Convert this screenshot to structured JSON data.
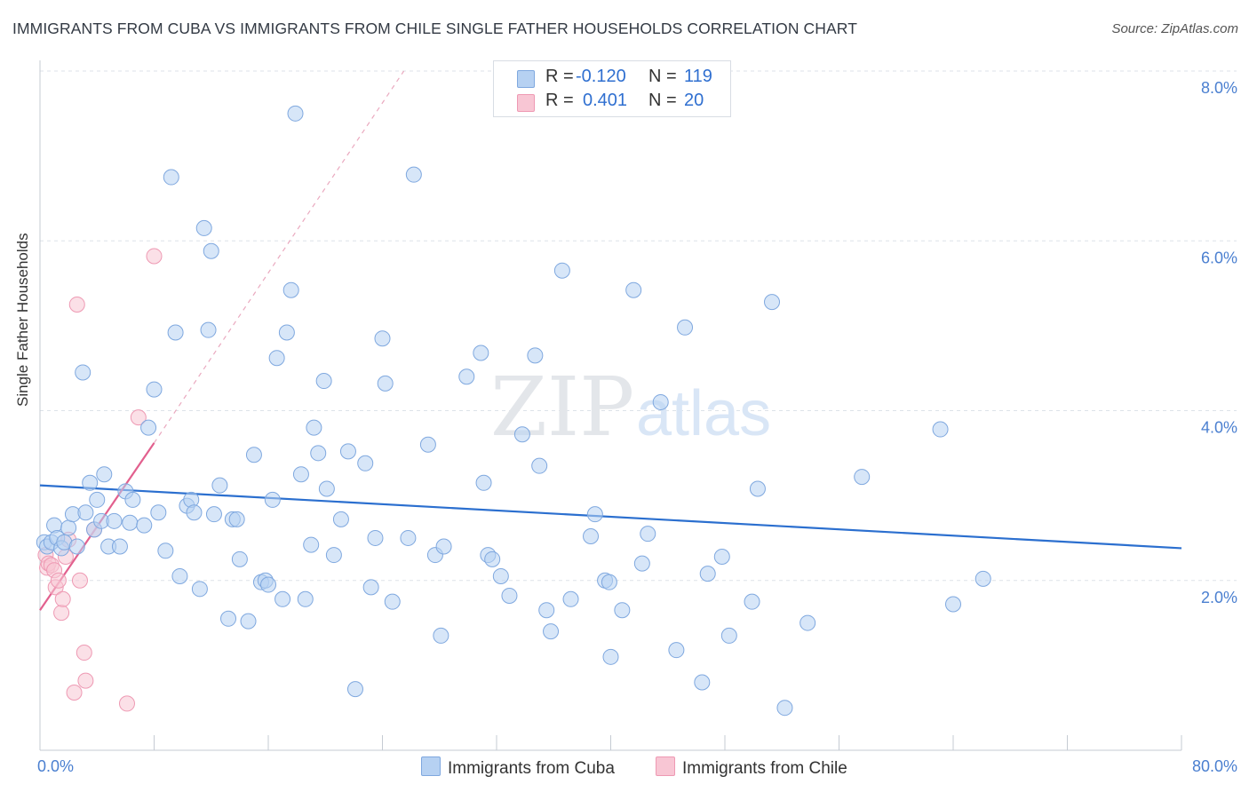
{
  "title": "IMMIGRANTS FROM CUBA VS IMMIGRANTS FROM CHILE SINGLE FATHER HOUSEHOLDS CORRELATION CHART",
  "source": "Source: ZipAtlas.com",
  "watermark": {
    "zip": "ZIP",
    "atlas": "atlas"
  },
  "legend": {
    "r_label": "R =",
    "n_label": "N =",
    "cuba": {
      "r": "-0.120",
      "n": "119"
    },
    "chile": {
      "r": "0.401",
      "n": "20"
    }
  },
  "colors": {
    "cuba_fill": "#b6d1f2",
    "cuba_stroke": "#7fa8df",
    "cuba_line": "#2b6fcf",
    "chile_fill": "#f8c6d4",
    "chile_stroke": "#ee99b3",
    "chile_line": "#e2608e",
    "axis_label": "#4a7fd0",
    "grid": "#dde2e8"
  },
  "chart_data": {
    "type": "scatter",
    "title": "IMMIGRANTS FROM CUBA VS IMMIGRANTS FROM CHILE SINGLE FATHER HOUSEHOLDS CORRELATION CHART",
    "xlabel": "",
    "ylabel": "Single Father Households",
    "xlim": [
      0,
      80
    ],
    "ylim": [
      0,
      8
    ],
    "x_tick_labels": [
      "0.0%",
      "80.0%"
    ],
    "y_ticks": [
      {
        "value": 2,
        "label": "2.0%"
      },
      {
        "value": 4,
        "label": "4.0%"
      },
      {
        "value": 6,
        "label": "6.0%"
      },
      {
        "value": 8,
        "label": "8.0%"
      }
    ],
    "series": [
      {
        "name": "Immigrants from Cuba",
        "trend": {
          "x": [
            0,
            80
          ],
          "y": [
            3.12,
            2.38
          ]
        },
        "points": [
          [
            0.3,
            2.45
          ],
          [
            0.5,
            2.4
          ],
          [
            0.8,
            2.45
          ],
          [
            1.0,
            2.65
          ],
          [
            1.2,
            2.5
          ],
          [
            1.5,
            2.38
          ],
          [
            1.7,
            2.45
          ],
          [
            2.0,
            2.62
          ],
          [
            2.3,
            2.78
          ],
          [
            2.6,
            2.4
          ],
          [
            3.0,
            4.45
          ],
          [
            3.2,
            2.8
          ],
          [
            3.5,
            3.15
          ],
          [
            3.8,
            2.6
          ],
          [
            4.0,
            2.95
          ],
          [
            4.3,
            2.7
          ],
          [
            4.5,
            3.25
          ],
          [
            4.8,
            2.4
          ],
          [
            5.2,
            2.7
          ],
          [
            5.6,
            2.4
          ],
          [
            6.0,
            3.05
          ],
          [
            6.3,
            2.68
          ],
          [
            6.5,
            2.95
          ],
          [
            7.3,
            2.65
          ],
          [
            7.6,
            3.8
          ],
          [
            8.0,
            4.25
          ],
          [
            8.3,
            2.8
          ],
          [
            8.8,
            2.35
          ],
          [
            9.2,
            6.75
          ],
          [
            9.5,
            4.92
          ],
          [
            9.8,
            2.05
          ],
          [
            10.3,
            2.88
          ],
          [
            10.6,
            2.95
          ],
          [
            10.8,
            2.8
          ],
          [
            11.2,
            1.9
          ],
          [
            11.5,
            6.15
          ],
          [
            11.8,
            4.95
          ],
          [
            12.0,
            5.88
          ],
          [
            12.2,
            2.78
          ],
          [
            12.6,
            3.12
          ],
          [
            13.2,
            1.55
          ],
          [
            13.5,
            2.72
          ],
          [
            13.8,
            2.72
          ],
          [
            14.0,
            2.25
          ],
          [
            14.6,
            1.52
          ],
          [
            15.0,
            3.48
          ],
          [
            15.5,
            1.98
          ],
          [
            15.8,
            2.0
          ],
          [
            16.0,
            1.95
          ],
          [
            16.3,
            2.95
          ],
          [
            16.6,
            4.62
          ],
          [
            17.0,
            1.78
          ],
          [
            17.3,
            4.92
          ],
          [
            17.6,
            5.42
          ],
          [
            17.9,
            7.5
          ],
          [
            18.3,
            3.25
          ],
          [
            18.6,
            1.78
          ],
          [
            19.0,
            2.42
          ],
          [
            19.2,
            3.8
          ],
          [
            19.5,
            3.5
          ],
          [
            19.9,
            4.35
          ],
          [
            20.1,
            3.08
          ],
          [
            20.6,
            2.3
          ],
          [
            21.1,
            2.72
          ],
          [
            21.6,
            3.52
          ],
          [
            22.1,
            0.72
          ],
          [
            22.8,
            3.38
          ],
          [
            23.2,
            1.92
          ],
          [
            23.5,
            2.5
          ],
          [
            24.0,
            4.85
          ],
          [
            24.2,
            4.32
          ],
          [
            24.7,
            1.75
          ],
          [
            25.8,
            2.5
          ],
          [
            26.2,
            6.78
          ],
          [
            27.2,
            3.6
          ],
          [
            27.7,
            2.3
          ],
          [
            28.1,
            1.35
          ],
          [
            28.3,
            2.4
          ],
          [
            29.9,
            4.4
          ],
          [
            30.9,
            4.68
          ],
          [
            31.1,
            3.15
          ],
          [
            31.4,
            2.3
          ],
          [
            31.7,
            2.25
          ],
          [
            32.3,
            2.05
          ],
          [
            32.9,
            1.82
          ],
          [
            33.8,
            3.72
          ],
          [
            34.7,
            4.65
          ],
          [
            35.0,
            3.35
          ],
          [
            35.5,
            1.65
          ],
          [
            35.8,
            1.4
          ],
          [
            36.6,
            5.65
          ],
          [
            37.2,
            1.78
          ],
          [
            38.6,
            2.52
          ],
          [
            38.9,
            2.78
          ],
          [
            39.6,
            2.0
          ],
          [
            39.9,
            1.98
          ],
          [
            40.0,
            1.1
          ],
          [
            40.8,
            1.65
          ],
          [
            41.6,
            5.42
          ],
          [
            42.2,
            2.2
          ],
          [
            42.6,
            2.55
          ],
          [
            43.5,
            4.1
          ],
          [
            44.6,
            1.18
          ],
          [
            45.2,
            4.98
          ],
          [
            46.4,
            0.8
          ],
          [
            46.8,
            2.08
          ],
          [
            47.8,
            2.28
          ],
          [
            48.3,
            1.35
          ],
          [
            49.9,
            1.75
          ],
          [
            50.3,
            3.08
          ],
          [
            51.3,
            5.28
          ],
          [
            52.2,
            0.5
          ],
          [
            53.8,
            1.5
          ],
          [
            57.6,
            3.22
          ],
          [
            63.1,
            3.78
          ],
          [
            64.0,
            1.72
          ],
          [
            66.1,
            2.02
          ]
        ]
      },
      {
        "name": "Immigrants from Chile",
        "trend": {
          "x": [
            0,
            8.0
          ],
          "y": [
            1.65,
            3.62
          ]
        },
        "trend_dashed": {
          "x": [
            8.0,
            25.5
          ],
          "y": [
            3.62,
            8.0
          ]
        },
        "points": [
          [
            0.4,
            2.3
          ],
          [
            0.5,
            2.15
          ],
          [
            0.6,
            2.2
          ],
          [
            0.8,
            2.18
          ],
          [
            1.0,
            2.12
          ],
          [
            1.1,
            1.92
          ],
          [
            1.3,
            2.0
          ],
          [
            1.5,
            1.62
          ],
          [
            1.6,
            1.78
          ],
          [
            1.8,
            2.28
          ],
          [
            2.0,
            2.48
          ],
          [
            2.4,
            0.68
          ],
          [
            2.6,
            5.25
          ],
          [
            2.8,
            2.0
          ],
          [
            3.1,
            1.15
          ],
          [
            3.2,
            0.82
          ],
          [
            3.8,
            2.6
          ],
          [
            6.1,
            0.55
          ],
          [
            6.9,
            3.92
          ],
          [
            8.0,
            5.82
          ]
        ]
      }
    ]
  },
  "bottom_legend": {
    "cuba": "Immigrants from Cuba",
    "chile": "Immigrants from Chile"
  }
}
